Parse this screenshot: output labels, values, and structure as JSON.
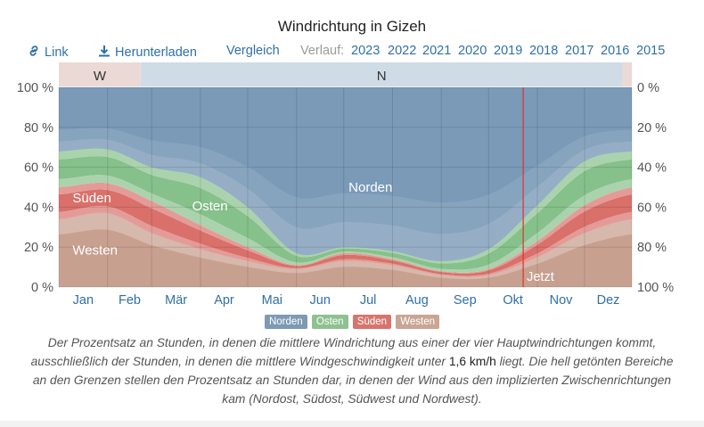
{
  "title": "Windrichtung in Gizeh",
  "toolbar": {
    "link_label": "Link",
    "download_label": "Herunterladen",
    "compare_label": "Vergleich",
    "history_label": "Verlauf:",
    "years": [
      "2023",
      "2022",
      "2021",
      "2020",
      "2019",
      "2018",
      "2017",
      "2016",
      "2015"
    ]
  },
  "chart_data": {
    "type": "area",
    "stacked": true,
    "x_label_months": [
      "Jan",
      "Feb",
      "Mär",
      "Apr",
      "Mai",
      "Jun",
      "Jul",
      "Aug",
      "Sep",
      "Okt",
      "Nov",
      "Dez"
    ],
    "y_left_ticks": [
      "100 %",
      "80 %",
      "60 %",
      "40 %",
      "20 %",
      "0 %"
    ],
    "y_right_ticks": [
      "0 %",
      "20 %",
      "40 %",
      "60 %",
      "80 %",
      "100 %"
    ],
    "ylim": [
      0,
      100
    ],
    "x_day_of_year": [
      1,
      32,
      60,
      91,
      121,
      152,
      182,
      213,
      244,
      274,
      305,
      335,
      365
    ],
    "series": [
      {
        "name": "Westen",
        "values": [
          34,
          37,
          27,
          19,
          13,
          9,
          13,
          11,
          6,
          6,
          15,
          27,
          34
        ]
      },
      {
        "name": "Süden",
        "values": [
          16,
          15,
          16,
          12,
          7,
          2,
          4,
          3,
          2,
          3,
          8,
          14,
          16
        ]
      },
      {
        "name": "Osten",
        "values": [
          18,
          17,
          17,
          24,
          20,
          6,
          3,
          4,
          5,
          10,
          18,
          22,
          18
        ]
      },
      {
        "name": "Norden",
        "values": [
          32,
          31,
          40,
          45,
          60,
          83,
          80,
          82,
          87,
          81,
          59,
          37,
          32
        ]
      }
    ],
    "light_band_fraction": 0.45,
    "series_labels": [
      {
        "text": "Süden",
        "series": "Süden",
        "day": 22
      },
      {
        "text": "Osten",
        "series": "Osten",
        "day": 97
      },
      {
        "text": "Westen",
        "series": "Westen",
        "day": 24
      },
      {
        "text": "Norden",
        "series": "Norden",
        "day": 199
      }
    ],
    "dominant_direction_bar": [
      {
        "label": "W",
        "start_day": 1,
        "end_day": 53
      },
      {
        "label": "N",
        "start_day": 53,
        "end_day": 359
      },
      {
        "label": "",
        "start_day": 359,
        "end_day": 365
      }
    ],
    "now_marker": {
      "label": "Jetzt",
      "day": 296
    },
    "grid": true,
    "colors": {
      "Norden": "#7a9ab8",
      "Osten": "#86c08a",
      "Süden": "#d9706a",
      "Westen": "#c8a090",
      "bar_W": "#ead9d4",
      "bar_N": "#cfdce6",
      "now_line": "#e03030"
    }
  },
  "legend": [
    {
      "label": "Norden",
      "color": "#7d9ab5"
    },
    {
      "label": "Osten",
      "color": "#8fc190"
    },
    {
      "label": "Süden",
      "color": "#d8746d"
    },
    {
      "label": "Westen",
      "color": "#c9a594"
    }
  ],
  "caption": {
    "part1": "Der Prozentsatz an Stunden, in denen die mittlere Windrichtung aus einer der vier Hauptwindrichtungen kommt, ausschließlich der Stunden, in denen die mittlere Windgeschwindigkeit unter ",
    "unit": "1,6 km/h",
    "part2": " liegt. Die hell getönten Bereiche an den Grenzen stellen den Prozentsatz an Stunden dar, in denen der Wind aus den implizierten Zwischenrichtungen kam (Nordost, Südost, Südwest und Nordwest)."
  }
}
